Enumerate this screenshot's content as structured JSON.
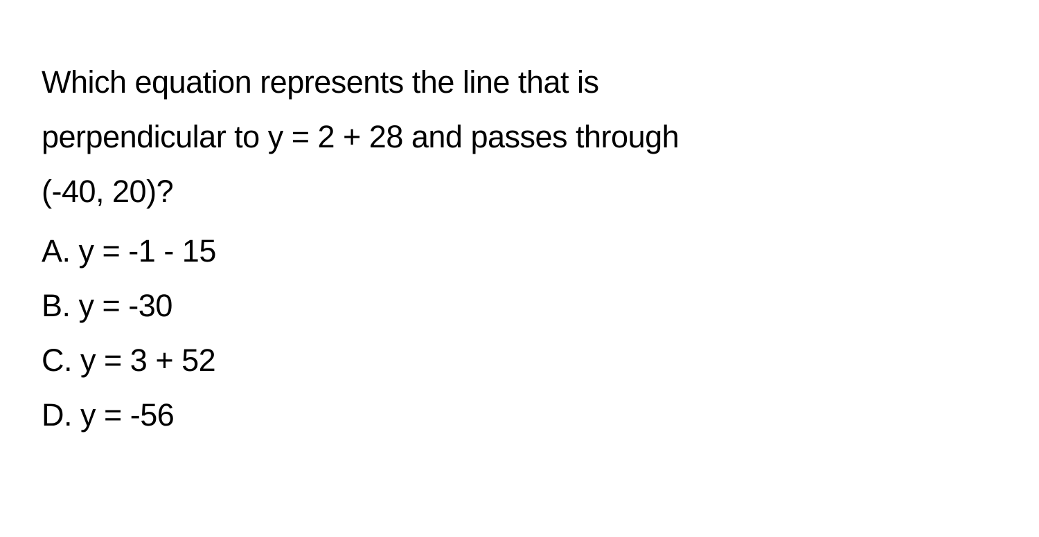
{
  "question": {
    "line1": "Which equation represents the line that is",
    "line2": "perpendicular to y = 2 + 28 and passes through",
    "line3": "(-40, 20)?"
  },
  "options": {
    "a": "A. y = -1 - 15",
    "b": "B. y = -30",
    "c": "C. y = 3 + 52",
    "d": "D. y = -56"
  },
  "style": {
    "font_size": 45,
    "text_color": "#000000",
    "background_color": "#ffffff",
    "line_height": 1.75
  }
}
